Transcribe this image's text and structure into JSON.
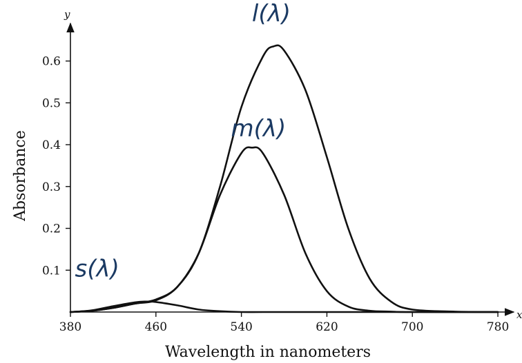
{
  "chart_data": {
    "type": "line",
    "xlabel": "Wavelength in nanometers",
    "ylabel": "Absorbance",
    "x_axis_letter": "x",
    "y_axis_letter": "y",
    "xlim": [
      380,
      800
    ],
    "ylim": [
      0,
      0.68
    ],
    "xticks": [
      380,
      460,
      540,
      620,
      700,
      780
    ],
    "xtick_labels": [
      "380",
      "460",
      "540",
      "620",
      "700",
      "780"
    ],
    "yticks": [
      0.1,
      0.2,
      0.3,
      0.4,
      0.5,
      0.6
    ],
    "ytick_labels": [
      "0.1",
      "0.2",
      "0.3",
      "0.4",
      "0.5",
      "0.6"
    ],
    "grid": false,
    "series": [
      {
        "name": "l(λ)",
        "x": [
          380,
          400,
          420,
          440,
          460,
          480,
          500,
          520,
          540,
          560,
          570,
          580,
          600,
          620,
          640,
          660,
          680,
          700,
          740,
          780
        ],
        "y": [
          0.0,
          0.003,
          0.01,
          0.02,
          0.03,
          0.06,
          0.14,
          0.3,
          0.49,
          0.61,
          0.635,
          0.625,
          0.53,
          0.37,
          0.2,
          0.08,
          0.025,
          0.006,
          0.001,
          0.0
        ]
      },
      {
        "name": "m(λ)",
        "x": [
          380,
          400,
          420,
          440,
          460,
          480,
          500,
          520,
          540,
          550,
          560,
          580,
          600,
          620,
          640,
          660,
          680,
          700,
          780
        ],
        "y": [
          0.0,
          0.003,
          0.01,
          0.02,
          0.028,
          0.06,
          0.14,
          0.28,
          0.38,
          0.393,
          0.38,
          0.28,
          0.14,
          0.05,
          0.013,
          0.003,
          0.001,
          0.0,
          0.0
        ]
      },
      {
        "name": "s(λ)",
        "x": [
          380,
          400,
          420,
          440,
          450,
          460,
          480,
          500,
          520,
          540,
          560,
          600,
          780
        ],
        "y": [
          0.0,
          0.004,
          0.014,
          0.023,
          0.025,
          0.024,
          0.016,
          0.006,
          0.002,
          0.0,
          0.0,
          0.0,
          0.0
        ]
      }
    ],
    "annotations": [
      {
        "text": "l(λ)",
        "x": 568,
        "y": 0.695
      },
      {
        "text": "m(λ)",
        "x": 556,
        "y": 0.42
      },
      {
        "text": "s(λ)",
        "x": 405,
        "y": 0.085
      }
    ]
  }
}
